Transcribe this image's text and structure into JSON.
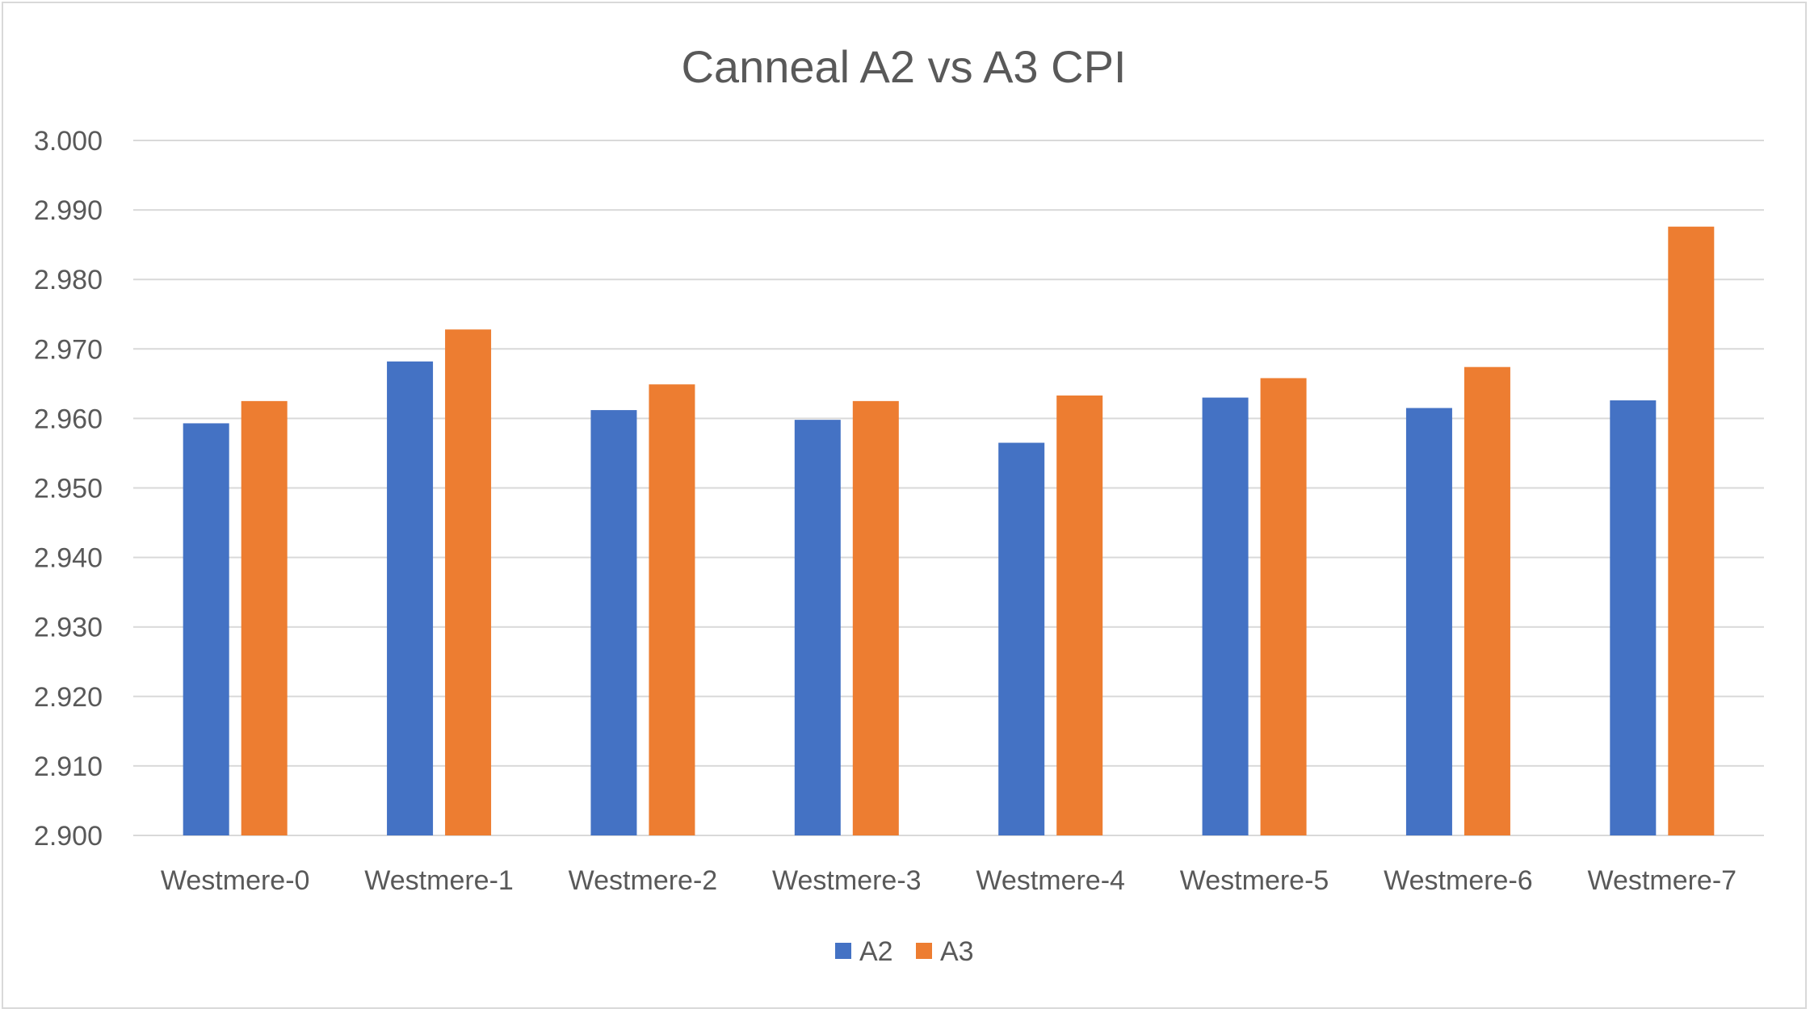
{
  "chart_data": {
    "type": "bar",
    "title": "Canneal A2 vs A3 CPI",
    "xlabel": "",
    "ylabel": "",
    "categories": [
      "Westmere-0",
      "Westmere-1",
      "Westmere-2",
      "Westmere-3",
      "Westmere-4",
      "Westmere-5",
      "Westmere-6",
      "Westmere-7"
    ],
    "series": [
      {
        "name": "A2",
        "color": "#4472c4",
        "values": [
          2.9593,
          2.9682,
          2.9612,
          2.9598,
          2.9565,
          2.963,
          2.9615,
          2.9626
        ]
      },
      {
        "name": "A3",
        "color": "#ed7d31",
        "values": [
          2.9625,
          2.9728,
          2.9649,
          2.9625,
          2.9633,
          2.9658,
          2.9674,
          2.9876
        ]
      }
    ],
    "ylim": [
      2.9,
      3.0
    ],
    "yticks": [
      "2.900",
      "2.910",
      "2.920",
      "2.930",
      "2.940",
      "2.950",
      "2.960",
      "2.970",
      "2.980",
      "2.990",
      "3.000"
    ],
    "grid": true,
    "legend_position": "bottom"
  }
}
